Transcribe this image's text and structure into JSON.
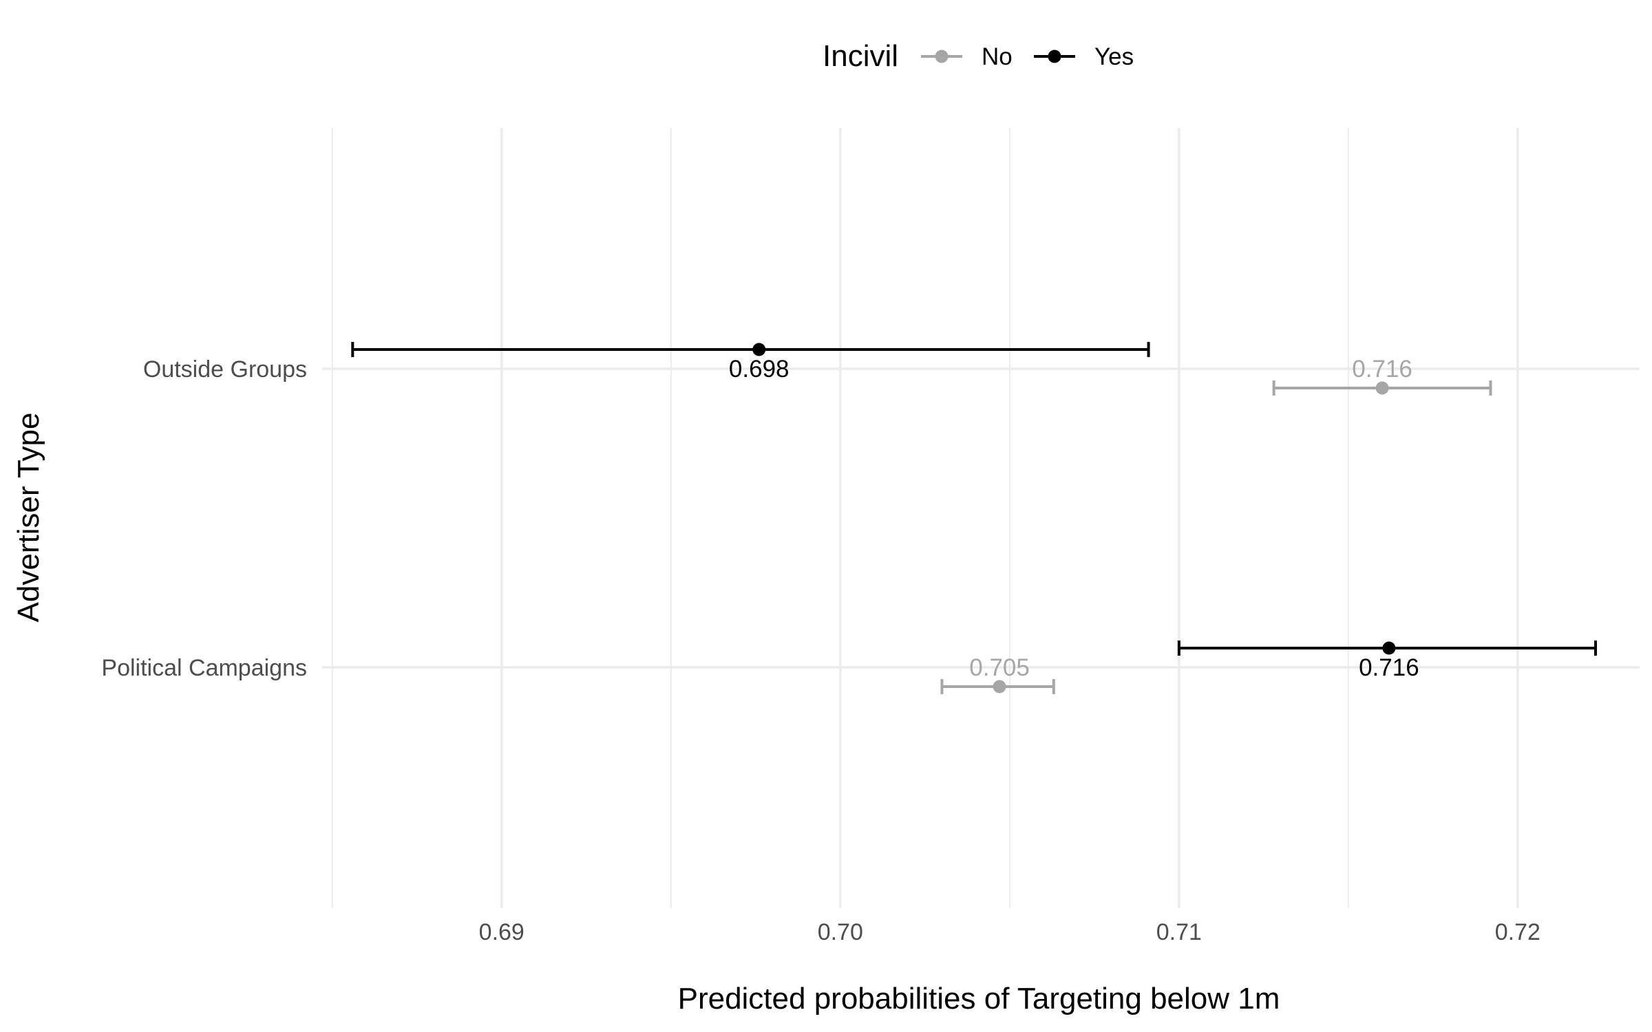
{
  "chart_data": {
    "type": "scatter",
    "subtype": "point-range",
    "orientation": "horizontal",
    "xlabel": "Predicted probabilities of Targeting below 1m",
    "ylabel": "Advertiser Type",
    "xlim": [
      0.6847,
      0.7236
    ],
    "x_ticks": [
      0.69,
      0.7,
      0.71,
      0.72
    ],
    "x_tick_labels": [
      "0.69",
      "0.70",
      "0.71",
      "0.72"
    ],
    "categories": [
      "Outside Groups",
      "Political Campaigns"
    ],
    "grid": true,
    "legend": {
      "title": "Incivil",
      "position": "top"
    },
    "series": [
      {
        "name": "No",
        "color": "#a6a6a6",
        "points": [
          {
            "category": "Outside Groups",
            "estimate": 0.716,
            "lower": 0.7128,
            "upper": 0.7192,
            "label": "0.716"
          },
          {
            "category": "Political Campaigns",
            "estimate": 0.7047,
            "lower": 0.703,
            "upper": 0.7063,
            "label": "0.705"
          }
        ]
      },
      {
        "name": "Yes",
        "color": "#000000",
        "points": [
          {
            "category": "Outside Groups",
            "estimate": 0.6976,
            "lower": 0.6856,
            "upper": 0.7091,
            "label": "0.698"
          },
          {
            "category": "Political Campaigns",
            "estimate": 0.7162,
            "lower": 0.71,
            "upper": 0.7223,
            "label": "0.716"
          }
        ]
      }
    ]
  }
}
